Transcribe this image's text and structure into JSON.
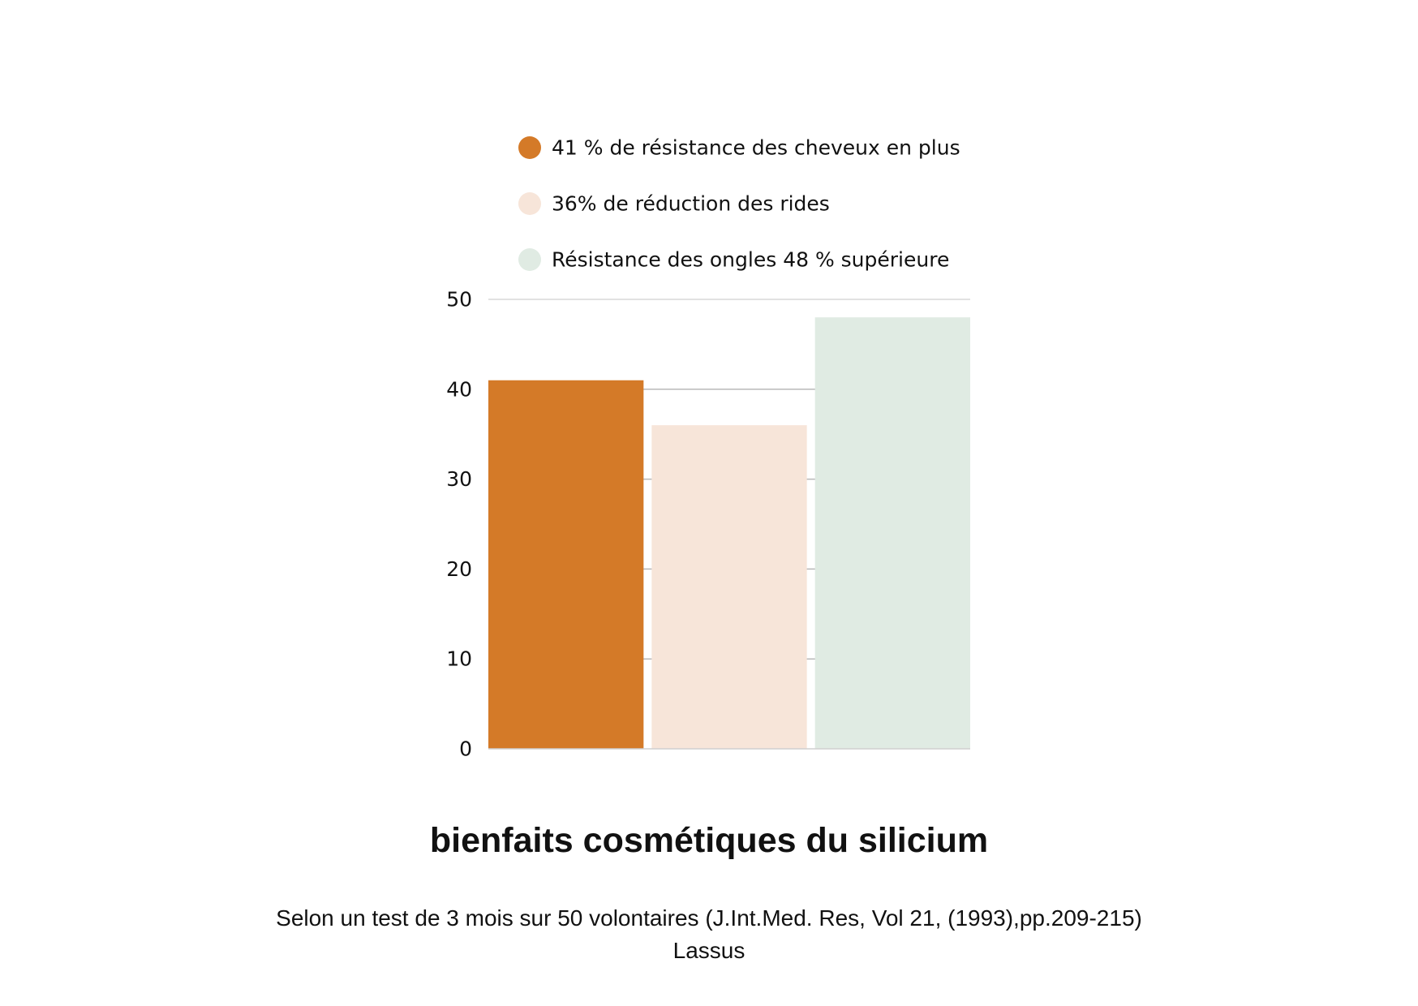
{
  "chart_data": {
    "type": "bar",
    "title": "bienfaits cosmétiques du silicium",
    "caption_line1": "Selon un test de 3 mois sur 50 volontaires (J.Int.Med. Res, Vol 21, (1993),pp.209-215)",
    "caption_line2": "Lassus",
    "ylim": [
      0,
      50
    ],
    "yticks": [
      "0",
      "10",
      "20",
      "30",
      "40",
      "50"
    ],
    "grid": true,
    "legend_position": "top",
    "series": [
      {
        "name": "41 % de résistance des cheveux en plus",
        "value": 41,
        "color": "#D47A28"
      },
      {
        "name": "36% de réduction des rides",
        "value": 36,
        "color": "#F7E5D9"
      },
      {
        "name": "Résistance des ongles 48 % supérieure",
        "value": 48,
        "color": "#E0EBE3"
      }
    ]
  }
}
